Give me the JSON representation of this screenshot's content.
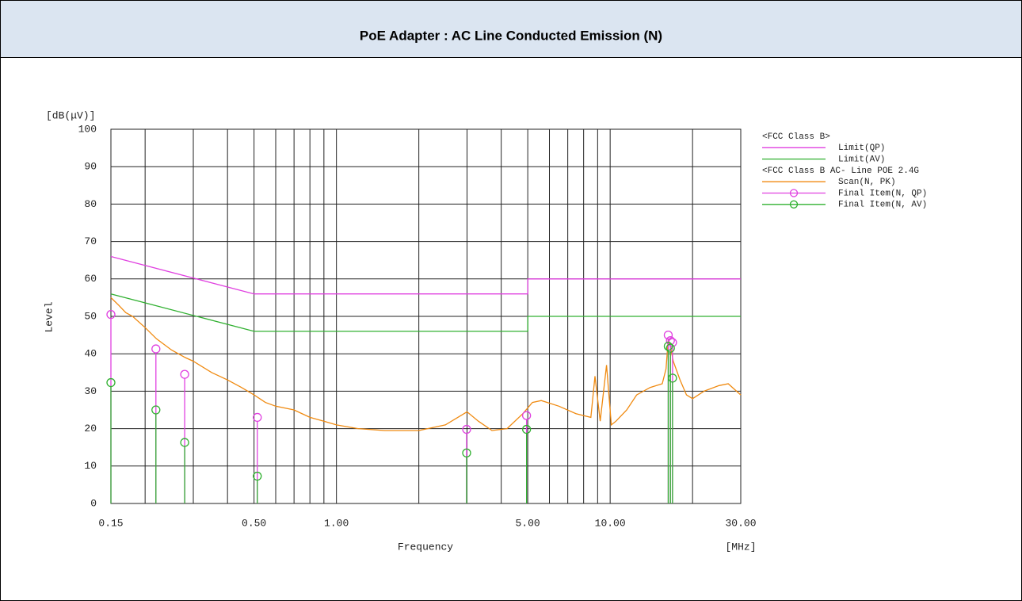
{
  "chart_data": {
    "type": "line",
    "title": "PoE Adapter : AC Line Conducted Emission (N)",
    "ylabel": "Level",
    "yunit": "[dB(μV)]",
    "xlabel": "Frequency",
    "xunit": "[MHz]",
    "xscale": "log",
    "xlim": [
      0.15,
      30
    ],
    "xticks": [
      0.15,
      {
        "value": 0.5,
        "label": "0.50"
      },
      {
        "value": 1,
        "label": "1.00"
      },
      {
        "value": 5,
        "label": "5.00"
      },
      {
        "value": 10,
        "label": "10.00"
      },
      {
        "value": 30,
        "label": "30.00"
      }
    ],
    "xgrid_minor": [
      0.2,
      0.3,
      0.4,
      0.6,
      0.7,
      0.8,
      0.9,
      2,
      3,
      4,
      6,
      7,
      8,
      9,
      20
    ],
    "ylim": [
      0,
      100
    ],
    "yticks": [
      0,
      10,
      20,
      30,
      40,
      50,
      60,
      70,
      80,
      90,
      100
    ],
    "grid": true,
    "legend_position": "right",
    "legend_headers": [
      "<FCC Class B>",
      "<FCC Class B  AC- Line POE 2.4G"
    ],
    "series": [
      {
        "name": "Limit(QP)",
        "color": "#e040e0",
        "mark": "line",
        "x": [
          0.15,
          0.5,
          5,
          5,
          30
        ],
        "values": [
          66,
          56,
          56,
          60,
          60
        ]
      },
      {
        "name": "Limit(AV)",
        "color": "#30b030",
        "mark": "line",
        "x": [
          0.15,
          0.5,
          5,
          5,
          30
        ],
        "values": [
          56,
          46,
          46,
          50,
          50
        ]
      },
      {
        "name": "Scan(N, PK)",
        "color": "#f08a10",
        "mark": "line",
        "x": [
          0.15,
          0.16,
          0.17,
          0.18,
          0.2,
          0.22,
          0.25,
          0.28,
          0.3,
          0.35,
          0.4,
          0.45,
          0.5,
          0.55,
          0.6,
          0.7,
          0.8,
          0.9,
          1.0,
          1.2,
          1.5,
          2.0,
          2.5,
          3.0,
          3.3,
          3.7,
          4.2,
          4.8,
          5.2,
          5.6,
          6.5,
          7.5,
          8.5,
          8.8,
          9.2,
          9.7,
          10.1,
          10.5,
          11.5,
          12.5,
          14,
          15.5,
          16,
          16.3,
          16.6,
          17,
          18,
          19,
          20,
          22,
          25,
          27,
          30
        ],
        "values": [
          55,
          53,
          51,
          50,
          47,
          44,
          41,
          39,
          38,
          35,
          33,
          31,
          29,
          27,
          26,
          25,
          23,
          22,
          21,
          20,
          19.5,
          19.5,
          21,
          24.5,
          22,
          19.5,
          20,
          24,
          27,
          27.5,
          26,
          24,
          23,
          34,
          22,
          37,
          21,
          22,
          25,
          29,
          31,
          32,
          36,
          44,
          42,
          38,
          33,
          29,
          28,
          30,
          31.5,
          32,
          29
        ]
      },
      {
        "name": "Final Item(N, QP)",
        "color": "#e040e0",
        "mark": "stem",
        "x": [
          0.15,
          0.219,
          0.279,
          0.514,
          2.99,
          4.95,
          16.3,
          16.6,
          16.9
        ],
        "values": [
          50.5,
          41.3,
          34.5,
          23,
          19.8,
          23.5,
          45,
          43.5,
          43
        ]
      },
      {
        "name": "Final Item(N, AV)",
        "color": "#30b030",
        "mark": "stem",
        "x": [
          0.15,
          0.219,
          0.279,
          0.514,
          2.99,
          4.95,
          16.3,
          16.6,
          16.9
        ],
        "values": [
          32.3,
          25,
          16.3,
          7.3,
          13.5,
          19.8,
          42,
          41.5,
          33.5
        ]
      }
    ]
  }
}
